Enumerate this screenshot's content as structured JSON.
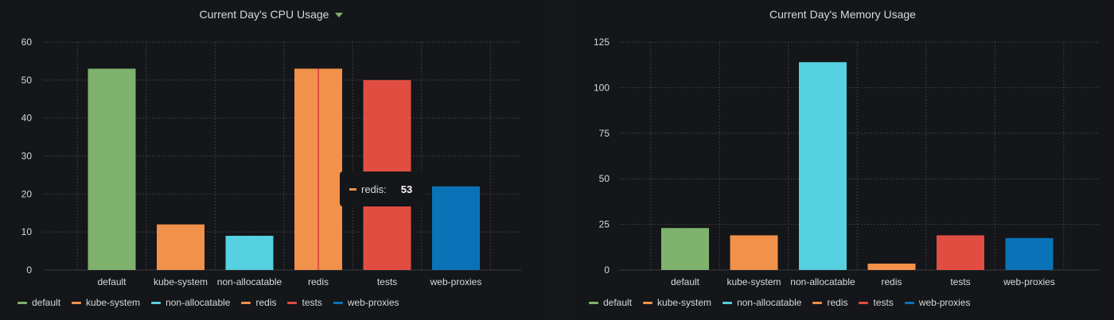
{
  "panels": [
    {
      "title": "Current Day's CPU Usage",
      "chart_data": {
        "type": "bar",
        "categories": [
          "default",
          "kube-system",
          "non-allocatable",
          "redis",
          "tests",
          "web-proxies"
        ],
        "values": [
          53,
          12,
          9,
          53,
          50,
          22
        ],
        "colors": [
          "#7eb26d",
          "#f2914a",
          "#55d1e1",
          "#f2914a",
          "#e24d42",
          "#0a73b8"
        ],
        "yticks": [
          0,
          10,
          20,
          30,
          40,
          50,
          60
        ],
        "ylim": [
          0,
          60
        ],
        "xlabel": "",
        "ylabel": "",
        "grid": true,
        "legend_position": "bottom-left",
        "highlighted_category": "redis"
      }
    },
    {
      "title": "Current Day's Memory Usage",
      "chart_data": {
        "type": "bar",
        "categories": [
          "default",
          "kube-system",
          "non-allocatable",
          "redis",
          "tests",
          "web-proxies"
        ],
        "values": [
          23,
          19,
          114,
          3.5,
          19,
          17.5
        ],
        "colors": [
          "#7eb26d",
          "#f2914a",
          "#55d1e1",
          "#f2914a",
          "#e24d42",
          "#0a73b8"
        ],
        "yticks": [
          0,
          25,
          50,
          75,
          100,
          125
        ],
        "ylim": [
          0,
          125
        ],
        "xlabel": "",
        "ylabel": "",
        "grid": true,
        "legend_position": "bottom-left"
      }
    }
  ],
  "legend": [
    {
      "label": "default",
      "color": "#7eb26d"
    },
    {
      "label": "kube-system",
      "color": "#f2914a"
    },
    {
      "label": "non-allocatable",
      "color": "#55d1e1"
    },
    {
      "label": "redis",
      "color": "#f2914a"
    },
    {
      "label": "tests",
      "color": "#e24d42"
    },
    {
      "label": "web-proxies",
      "color": "#0a73b8"
    }
  ],
  "tooltip": {
    "series": "redis:",
    "value": "53",
    "color": "#f2914a"
  },
  "colors": {
    "background": "#161719",
    "grid": "#3a3c40",
    "text": "#d8d9da",
    "title_caret": "#7eb26d",
    "hover_line": "#e24d42"
  }
}
